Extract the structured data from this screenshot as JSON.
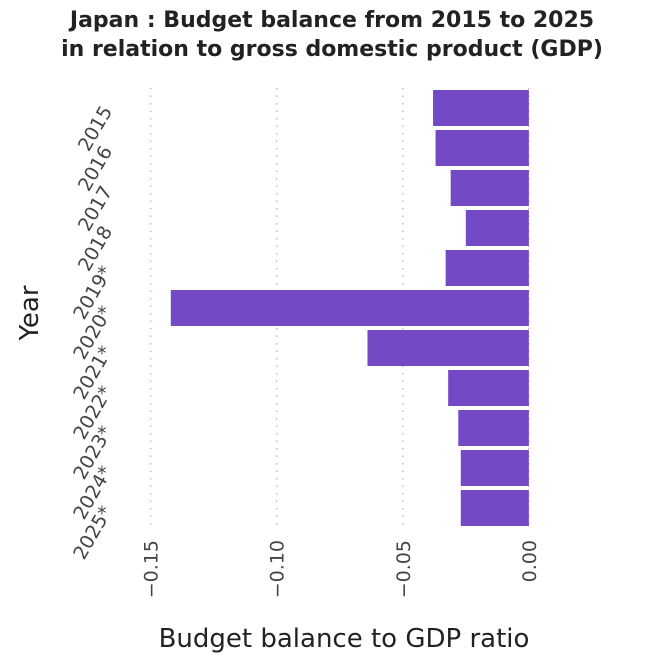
{
  "chart_data": {
    "type": "bar",
    "orientation": "horizontal",
    "title_line1": "Japan : Budget balance from 2015 to 2025",
    "title_line2": "in relation to gross domestic product (GDP)",
    "xlabel": "Budget balance to GDP ratio",
    "ylabel": "Year",
    "categories": [
      "2015",
      "2016",
      "2017",
      "2018",
      "2019*",
      "2020*",
      "2021*",
      "2022*",
      "2023*",
      "2024*",
      "2025*"
    ],
    "values": [
      -0.038,
      -0.037,
      -0.031,
      -0.025,
      -0.033,
      -0.142,
      -0.064,
      -0.032,
      -0.028,
      -0.027,
      -0.027
    ],
    "xlim": [
      -0.15,
      0.0
    ],
    "xticks": [
      -0.15,
      -0.1,
      -0.05,
      0.0
    ],
    "xtick_labels": [
      "−0.15",
      "−0.10",
      "−0.05",
      "0.00"
    ],
    "grid": "vertical dotted",
    "bar_color": "#7349c6"
  }
}
